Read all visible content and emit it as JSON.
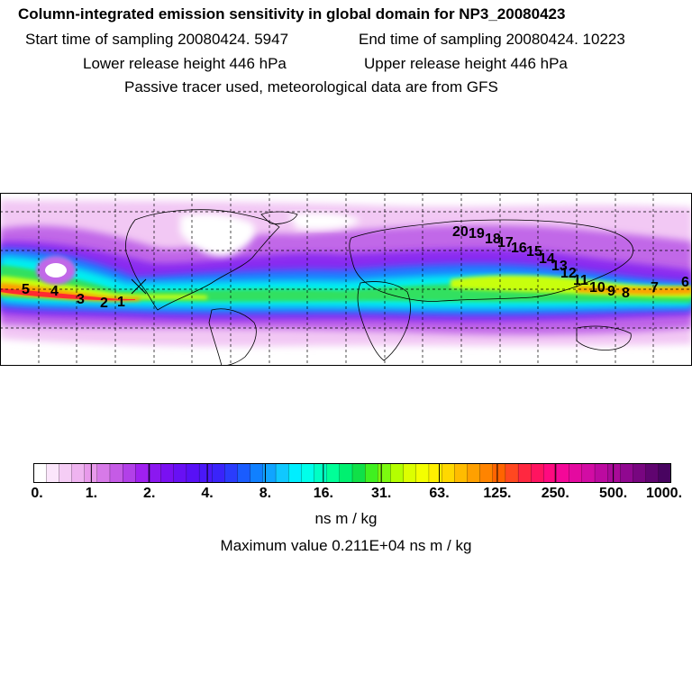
{
  "header": {
    "title": "Column-integrated emission sensitivity in global domain for NP3_20080423",
    "start_label": "Start time of sampling 20080424.  5947",
    "end_label": "End time of sampling 20080424. 10223",
    "lower_label": "Lower release height  446 hPa",
    "upper_label": "Upper release height  446 hPa",
    "tracer_note": "Passive tracer used, meteorological data are from GFS"
  },
  "map": {
    "markers": [
      "1",
      "2",
      "3",
      "4",
      "5",
      "6",
      "7",
      "8",
      "9",
      "10",
      "11",
      "12",
      "13",
      "14",
      "15",
      "16",
      "17",
      "18",
      "19",
      "20"
    ]
  },
  "colorbar": {
    "tick_labels": [
      "0.",
      "1.",
      "2.",
      "4.",
      "8.",
      "16.",
      "31.",
      "63.",
      "125.",
      "250.",
      "500.",
      "1000."
    ],
    "units": "ns m / kg",
    "max_value_label": "Maximum value  0.211E+04 ns m / kg",
    "colors": [
      "#ffffff",
      "#fbe6fb",
      "#f5cdf5",
      "#efb4f0",
      "#e89aeb",
      "#d77ae8",
      "#c55be6",
      "#b240e8",
      "#a020f0",
      "#8b18f0",
      "#7a10f2",
      "#6810f4",
      "#5810f6",
      "#4a18f8",
      "#3a24fa",
      "#2a3cfc",
      "#1a5cfe",
      "#1080ff",
      "#10a4ff",
      "#10c8ff",
      "#00eeff",
      "#00ffea",
      "#00ffc4",
      "#00ff98",
      "#00f070",
      "#10e048",
      "#40f020",
      "#7cfa10",
      "#b4ff00",
      "#dcff00",
      "#f4ff00",
      "#fff000",
      "#ffd800",
      "#ffbc00",
      "#ffa000",
      "#ff8400",
      "#ff6400",
      "#ff4820",
      "#ff2840",
      "#ff1460",
      "#ff0a80",
      "#f40898",
      "#e40aa0",
      "#d20ca4",
      "#bc0aa0",
      "#a80a98",
      "#900890",
      "#780680",
      "#600470",
      "#480460"
    ]
  }
}
